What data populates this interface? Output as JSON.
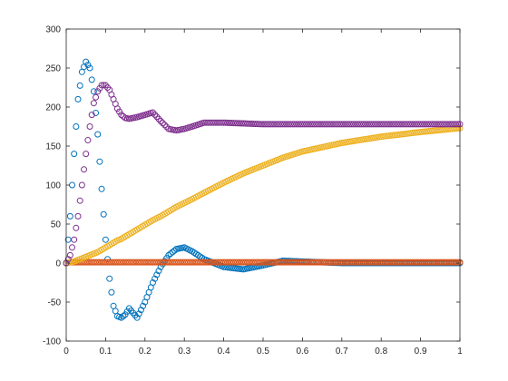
{
  "chart_data": {
    "type": "scatter",
    "title": "",
    "xlabel": "",
    "ylabel": "",
    "xlim": [
      0,
      1
    ],
    "ylim": [
      -100,
      300
    ],
    "grid": false,
    "legend": "none",
    "x_ticks": [
      "0",
      "0.1",
      "0.2",
      "0.3",
      "0.4",
      "0.5",
      "0.6",
      "0.7",
      "0.8",
      "0.9",
      "1"
    ],
    "y_ticks": [
      "-100",
      "-50",
      "0",
      "50",
      "100",
      "150",
      "200",
      "250",
      "300"
    ],
    "x": [
      0,
      0.01,
      0.02,
      0.03,
      0.04,
      0.05,
      0.06,
      0.07,
      0.08,
      0.09,
      0.1,
      0.11,
      0.12,
      0.13,
      0.14,
      0.15,
      0.16,
      0.18,
      0.2,
      0.22,
      0.24,
      0.26,
      0.28,
      0.3,
      0.32,
      0.35,
      0.4,
      0.45,
      0.5,
      0.55,
      0.6,
      0.7,
      0.8,
      0.9,
      1
    ],
    "series": [
      {
        "color": "#0072BD",
        "marker": "circle",
        "values": [
          0,
          60,
          140,
          210,
          245,
          258,
          250,
          220,
          165,
          95,
          30,
          -20,
          -55,
          -68,
          -70,
          -66,
          -58,
          -70,
          -50,
          -25,
          -5,
          10,
          18,
          20,
          15,
          5,
          -5,
          -8,
          -3,
          3,
          2,
          0,
          0,
          0,
          0
        ]
      },
      {
        "color": "#D95319",
        "marker": "circle",
        "values": [
          0,
          1,
          1,
          1,
          1,
          1,
          1,
          1,
          1,
          1,
          1,
          1,
          1,
          1,
          1,
          1,
          1,
          1,
          1,
          1,
          1,
          1,
          1,
          1,
          1,
          1,
          1,
          1,
          1,
          1,
          1,
          1,
          1,
          1,
          1
        ]
      },
      {
        "color": "#EDB120",
        "marker": "circle",
        "values": [
          0,
          1,
          2,
          4,
          6,
          8,
          10,
          12,
          14,
          17,
          20,
          23,
          26,
          29,
          31,
          34,
          37,
          43,
          49,
          55,
          60,
          66,
          72,
          77,
          82,
          90,
          103,
          115,
          125,
          135,
          143,
          154,
          162,
          168,
          173
        ]
      },
      {
        "color": "#7E2F8E",
        "marker": "circle",
        "values": [
          0,
          10,
          30,
          60,
          100,
          140,
          175,
          205,
          220,
          228,
          228,
          222,
          210,
          198,
          190,
          186,
          185,
          187,
          190,
          193,
          182,
          172,
          170,
          172,
          175,
          180,
          180,
          179,
          178,
          178,
          178,
          178,
          178,
          178,
          178
        ]
      }
    ]
  }
}
